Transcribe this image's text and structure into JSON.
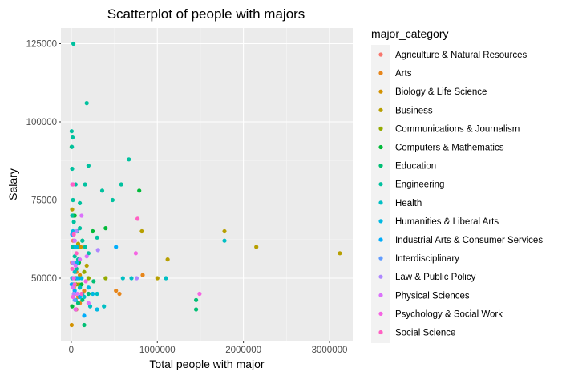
{
  "chart_data": {
    "type": "scatter",
    "title": "Scatterplot of people with majors",
    "xlabel": "Total people with major",
    "ylabel": "Salary",
    "xlim": [
      -120000,
      3270000
    ],
    "ylim": [
      30000,
      130000
    ],
    "x_ticks": [
      0,
      1000000,
      2000000,
      3000000
    ],
    "y_ticks": [
      50000,
      75000,
      100000,
      125000
    ],
    "x_tick_labels": [
      "0",
      "1000000",
      "2000000",
      "3000000"
    ],
    "y_tick_labels": [
      "50000",
      "75000",
      "100000",
      "125000"
    ],
    "grid": true,
    "legend_title": "major_category",
    "legend_position": "right",
    "series": [
      {
        "name": "Agriculture & Natural Resources",
        "color": "#F8766D",
        "points": [
          [
            20000,
            62000
          ],
          [
            8000,
            55000
          ],
          [
            30000,
            50000
          ],
          [
            40000,
            45000
          ],
          [
            12000,
            48000
          ],
          [
            60000,
            40000
          ]
        ]
      },
      {
        "name": "Arts",
        "color": "#E7861B",
        "points": [
          [
            150000,
            46000
          ],
          [
            80000,
            44000
          ],
          [
            50000,
            55000
          ],
          [
            520000,
            46000
          ],
          [
            560000,
            45000
          ],
          [
            830000,
            51000
          ],
          [
            20000,
            47000
          ],
          [
            100000,
            42000
          ],
          [
            60000,
            52000
          ]
        ]
      },
      {
        "name": "Biology & Life Science",
        "color": "#D39200",
        "points": [
          [
            5000,
            35000
          ],
          [
            40000,
            50000
          ],
          [
            90000,
            48000
          ],
          [
            100000,
            51000
          ],
          [
            60000,
            53000
          ],
          [
            30000,
            47000
          ],
          [
            110000,
            60000
          ],
          [
            70000,
            55000
          ]
        ]
      },
      {
        "name": "Business",
        "color": "#B79F00",
        "points": [
          [
            1780000,
            65000
          ],
          [
            2150000,
            60000
          ],
          [
            3120000,
            58000
          ],
          [
            1120000,
            56000
          ],
          [
            820000,
            65000
          ],
          [
            1000000,
            50000
          ],
          [
            10000,
            72000
          ],
          [
            80000,
            61000
          ],
          [
            180000,
            54000
          ]
        ]
      },
      {
        "name": "Communications & Journalism",
        "color": "#93AA00",
        "points": [
          [
            200000,
            50000
          ],
          [
            400000,
            50000
          ],
          [
            150000,
            52000
          ],
          [
            60000,
            48000
          ]
        ]
      },
      {
        "name": "Computers & Mathematics",
        "color": "#00BA38",
        "points": [
          [
            5000,
            92000
          ],
          [
            20000,
            70000
          ],
          [
            40000,
            70000
          ],
          [
            25000,
            60000
          ],
          [
            130000,
            62000
          ],
          [
            400000,
            66000
          ],
          [
            790000,
            78000
          ],
          [
            250000,
            65000
          ],
          [
            90000,
            55000
          ],
          [
            60000,
            50000
          ],
          [
            120000,
            48000
          ],
          [
            10000,
            41000
          ]
        ]
      },
      {
        "name": "Education",
        "color": "#00BF74",
        "points": [
          [
            1450000,
            43000
          ],
          [
            1450000,
            40000
          ],
          [
            150000,
            35000
          ],
          [
            80000,
            42000
          ],
          [
            130000,
            43000
          ],
          [
            200000,
            45000
          ],
          [
            50000,
            40000
          ],
          [
            260000,
            49000
          ],
          [
            30000,
            45000
          ],
          [
            100000,
            47000
          ]
        ]
      },
      {
        "name": "Engineering",
        "color": "#00C19F",
        "points": [
          [
            25000,
            125000
          ],
          [
            180000,
            106000
          ],
          [
            5000,
            97000
          ],
          [
            15000,
            95000
          ],
          [
            8000,
            92000
          ],
          [
            200000,
            86000
          ],
          [
            670000,
            88000
          ],
          [
            580000,
            80000
          ],
          [
            160000,
            80000
          ],
          [
            10000,
            85000
          ],
          [
            50000,
            80000
          ],
          [
            20000,
            75000
          ],
          [
            100000,
            74000
          ],
          [
            360000,
            78000
          ],
          [
            480000,
            75000
          ],
          [
            10000,
            70000
          ],
          [
            30000,
            68000
          ],
          [
            70000,
            65000
          ],
          [
            100000,
            66000
          ],
          [
            130000,
            62000
          ],
          [
            160000,
            60000
          ],
          [
            200000,
            58000
          ],
          [
            15000,
            60000
          ],
          [
            40000,
            57000
          ],
          [
            80000,
            56000
          ],
          [
            60000,
            53000
          ],
          [
            300000,
            63000
          ],
          [
            90000,
            50000
          ],
          [
            130000,
            45000
          ]
        ]
      },
      {
        "name": "Health",
        "color": "#00BFC4",
        "points": [
          [
            1780000,
            62000
          ],
          [
            1100000,
            50000
          ],
          [
            700000,
            50000
          ],
          [
            600000,
            50000
          ],
          [
            50000,
            43000
          ],
          [
            100000,
            47000
          ],
          [
            150000,
            44000
          ],
          [
            220000,
            41000
          ],
          [
            300000,
            45000
          ],
          [
            380000,
            41000
          ],
          [
            40000,
            52000
          ],
          [
            70000,
            60000
          ]
        ]
      },
      {
        "name": "Humanities & Liberal Arts",
        "color": "#00B9E3",
        "points": [
          [
            20000,
            65000
          ],
          [
            50000,
            60000
          ],
          [
            70000,
            55000
          ],
          [
            120000,
            50000
          ],
          [
            200000,
            47000
          ],
          [
            250000,
            45000
          ],
          [
            300000,
            40000
          ],
          [
            30000,
            48000
          ],
          [
            10000,
            50000
          ]
        ]
      },
      {
        "name": "Industrial Arts & Consumer Services",
        "color": "#00ADFA",
        "points": [
          [
            10000,
            64000
          ],
          [
            40000,
            62000
          ],
          [
            70000,
            50000
          ],
          [
            520000,
            60000
          ],
          [
            100000,
            44000
          ],
          [
            40000,
            46000
          ],
          [
            5000,
            48000
          ],
          [
            150000,
            38000
          ]
        ]
      },
      {
        "name": "Interdisciplinary",
        "color": "#619CFF",
        "points": [
          [
            40000,
            43000
          ]
        ]
      },
      {
        "name": "Law & Public Policy",
        "color": "#AE87FF",
        "points": [
          [
            60000,
            65000
          ],
          [
            310000,
            59000
          ],
          [
            760000,
            50000
          ],
          [
            20000,
            55000
          ],
          [
            30000,
            45000
          ]
        ]
      },
      {
        "name": "Physical Sciences",
        "color": "#DB72FB",
        "points": [
          [
            10000,
            80000
          ],
          [
            120000,
            70000
          ],
          [
            40000,
            62000
          ],
          [
            180000,
            57000
          ],
          [
            50000,
            54000
          ],
          [
            100000,
            56000
          ],
          [
            20000,
            47000
          ],
          [
            200000,
            42000
          ],
          [
            70000,
            45000
          ]
        ]
      },
      {
        "name": "Psychology & Social Work",
        "color": "#F564E3",
        "points": [
          [
            1490000,
            45000
          ],
          [
            750000,
            58000
          ],
          [
            170000,
            49000
          ],
          [
            20000,
            44000
          ],
          [
            50000,
            40000
          ],
          [
            30000,
            50000
          ]
        ]
      },
      {
        "name": "Social Science",
        "color": "#FF61C3",
        "points": [
          [
            770000,
            69000
          ],
          [
            20000,
            80000
          ],
          [
            30000,
            64000
          ],
          [
            60000,
            58000
          ],
          [
            10000,
            53000
          ],
          [
            40000,
            48000
          ],
          [
            120000,
            45000
          ]
        ]
      }
    ]
  }
}
